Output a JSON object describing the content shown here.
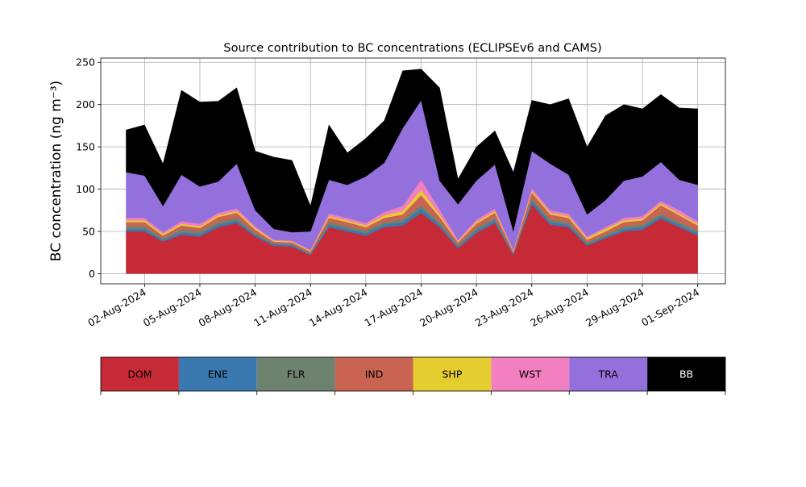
{
  "chart_data": {
    "type": "area",
    "stacked": true,
    "title": "Source contribution to BC concentrations (ECLIPSEv6 and CAMS)",
    "ylabel": "BC concentration (ng m⁻³)",
    "xlabel": "",
    "ylim": [
      -12,
      255
    ],
    "yticks": [
      0,
      50,
      100,
      150,
      200,
      250
    ],
    "xlim": [
      "2024-07-30T15:00",
      "2024-09-02T12:00"
    ],
    "xticks": [
      "02-Aug-2024",
      "05-Aug-2024",
      "08-Aug-2024",
      "11-Aug-2024",
      "14-Aug-2024",
      "17-Aug-2024",
      "20-Aug-2024",
      "23-Aug-2024",
      "26-Aug-2024",
      "29-Aug-2024",
      "01-Sep-2024"
    ],
    "grid": true,
    "legend_position": "bottom",
    "x": [
      "2024-08-01",
      "2024-08-02",
      "2024-08-03",
      "2024-08-04",
      "2024-08-05",
      "2024-08-06",
      "2024-08-07",
      "2024-08-08",
      "2024-08-09",
      "2024-08-10",
      "2024-08-11",
      "2024-08-12",
      "2024-08-13",
      "2024-08-14",
      "2024-08-15",
      "2024-08-16",
      "2024-08-17",
      "2024-08-18",
      "2024-08-19",
      "2024-08-20",
      "2024-08-21",
      "2024-08-22",
      "2024-08-23",
      "2024-08-24",
      "2024-08-25",
      "2024-08-26",
      "2024-08-27",
      "2024-08-28",
      "2024-08-29",
      "2024-08-30",
      "2024-08-31",
      "2024-09-01"
    ],
    "series": [
      {
        "name": "DOM",
        "color": "#c52a36",
        "values": [
          50,
          50,
          38,
          46,
          44,
          55,
          60,
          44,
          33,
          32,
          22,
          55,
          50,
          45,
          55,
          57,
          72,
          55,
          30,
          48,
          60,
          22,
          82,
          58,
          55,
          33,
          42,
          50,
          52,
          65,
          55,
          45
        ]
      },
      {
        "name": "ENE",
        "color": "#3a79b0",
        "values": [
          3,
          3,
          2,
          3,
          3,
          3,
          3,
          2,
          2,
          2,
          1,
          3,
          3,
          3,
          3,
          4,
          5,
          3,
          2,
          3,
          3,
          1,
          4,
          3,
          3,
          2,
          2,
          3,
          3,
          3,
          3,
          3
        ]
      },
      {
        "name": "FLR",
        "color": "#6e8270",
        "values": [
          3,
          3,
          2,
          3,
          3,
          3,
          3,
          2,
          1,
          1,
          1,
          3,
          3,
          3,
          3,
          3,
          4,
          3,
          2,
          3,
          3,
          1,
          3,
          3,
          3,
          2,
          2,
          3,
          3,
          3,
          3,
          3
        ]
      },
      {
        "name": "IND",
        "color": "#c96352",
        "values": [
          5,
          5,
          3,
          5,
          4,
          6,
          6,
          4,
          2,
          2,
          2,
          5,
          5,
          4,
          5,
          6,
          12,
          6,
          3,
          5,
          6,
          2,
          7,
          6,
          5,
          3,
          4,
          5,
          5,
          10,
          8,
          6
        ]
      },
      {
        "name": "SHP",
        "color": "#e4cd2e",
        "values": [
          2,
          2,
          2,
          2,
          2,
          2,
          2,
          2,
          1,
          1,
          1,
          2,
          2,
          2,
          3,
          4,
          6,
          3,
          1,
          2,
          2,
          1,
          2,
          2,
          2,
          2,
          3,
          2,
          2,
          2,
          2,
          2
        ]
      },
      {
        "name": "WST",
        "color": "#f27fbf",
        "values": [
          3,
          3,
          2,
          3,
          3,
          3,
          3,
          2,
          1,
          1,
          1,
          3,
          3,
          3,
          4,
          6,
          12,
          6,
          2,
          3,
          3,
          1,
          3,
          3,
          3,
          2,
          2,
          3,
          3,
          3,
          4,
          3
        ]
      },
      {
        "name": "TRA",
        "color": "#9370db",
        "values": [
          54,
          50,
          31,
          55,
          44,
          37,
          53,
          19,
          13,
          10,
          22,
          40,
          39,
          55,
          58,
          92,
          94,
          34,
          42,
          46,
          52,
          22,
          44,
          55,
          46,
          26,
          32,
          44,
          47,
          46,
          36,
          43
        ]
      },
      {
        "name": "BB",
        "color": "#000000",
        "values": [
          50,
          60,
          50,
          100,
          100,
          95,
          90,
          70,
          85,
          85,
          30,
          65,
          38,
          45,
          50,
          68,
          37,
          110,
          30,
          40,
          40,
          70,
          60,
          70,
          90,
          80,
          100,
          90,
          80,
          80,
          85,
          90
        ]
      }
    ]
  },
  "legend": {
    "items": [
      {
        "name": "DOM",
        "color": "#c52a36",
        "text_color": "#000000"
      },
      {
        "name": "ENE",
        "color": "#3a79b0",
        "text_color": "#000000"
      },
      {
        "name": "FLR",
        "color": "#6e8270",
        "text_color": "#000000"
      },
      {
        "name": "IND",
        "color": "#c96352",
        "text_color": "#000000"
      },
      {
        "name": "SHP",
        "color": "#e4cd2e",
        "text_color": "#000000"
      },
      {
        "name": "WST",
        "color": "#f27fbf",
        "text_color": "#000000"
      },
      {
        "name": "TRA",
        "color": "#9370db",
        "text_color": "#000000"
      },
      {
        "name": "BB",
        "color": "#000000",
        "text_color": "#ffffff"
      }
    ]
  }
}
